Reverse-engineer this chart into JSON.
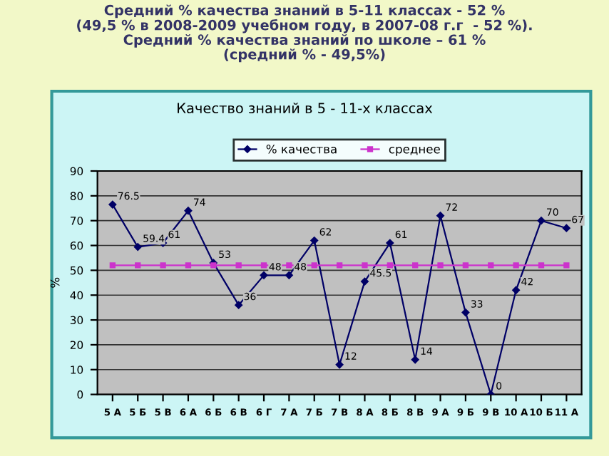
{
  "chart_data": {
    "type": "line",
    "title": "Средний % качества знаний в 5-11 классах - 52 %\n(49,5 % в 2008-2009 учебном году, в 2007-08 г.г  - 52 %).\nСредний % качества знаний по школе – 61 %\n(средний % - 49,5%)",
    "subtitle": "Качество знаний в 5 - 11-х классах",
    "ylabel": "%",
    "categories": [
      "5 А",
      "5 Б",
      "5 В",
      "6 А",
      "6 Б",
      "6 В",
      "6 Г",
      "7 А",
      "7 Б",
      "7 В",
      "8 А",
      "8 Б",
      "8 В",
      "9 А",
      "9 Б",
      "9 В",
      "10 А",
      "10 Б",
      "11 А"
    ],
    "series": [
      {
        "name": "% качества",
        "color": "#000066",
        "marker": "diamond",
        "values": [
          76.5,
          59.4,
          61,
          74,
          53,
          36,
          48,
          48,
          62,
          12,
          45.5,
          61,
          14,
          72,
          33,
          0,
          42,
          70,
          67
        ],
        "value_labels": [
          "76.5",
          "59.4",
          "61",
          "74",
          "53",
          "36",
          "48",
          "48",
          "62",
          "12",
          "45.5",
          "61",
          "14",
          "72",
          "33",
          "0",
          "42",
          "70",
          "67"
        ]
      },
      {
        "name": "среднее",
        "color": "#cc33cc",
        "marker": "square",
        "values": [
          52,
          52,
          52,
          52,
          52,
          52,
          52,
          52,
          52,
          52,
          52,
          52,
          52,
          52,
          52,
          52,
          52,
          52,
          52
        ]
      }
    ],
    "ylim": [
      0,
      90
    ],
    "yticks": [
      0,
      10,
      20,
      30,
      40,
      50,
      60,
      70,
      80,
      90
    ],
    "grid": "y",
    "legend": "top",
    "line_style": "solid"
  }
}
